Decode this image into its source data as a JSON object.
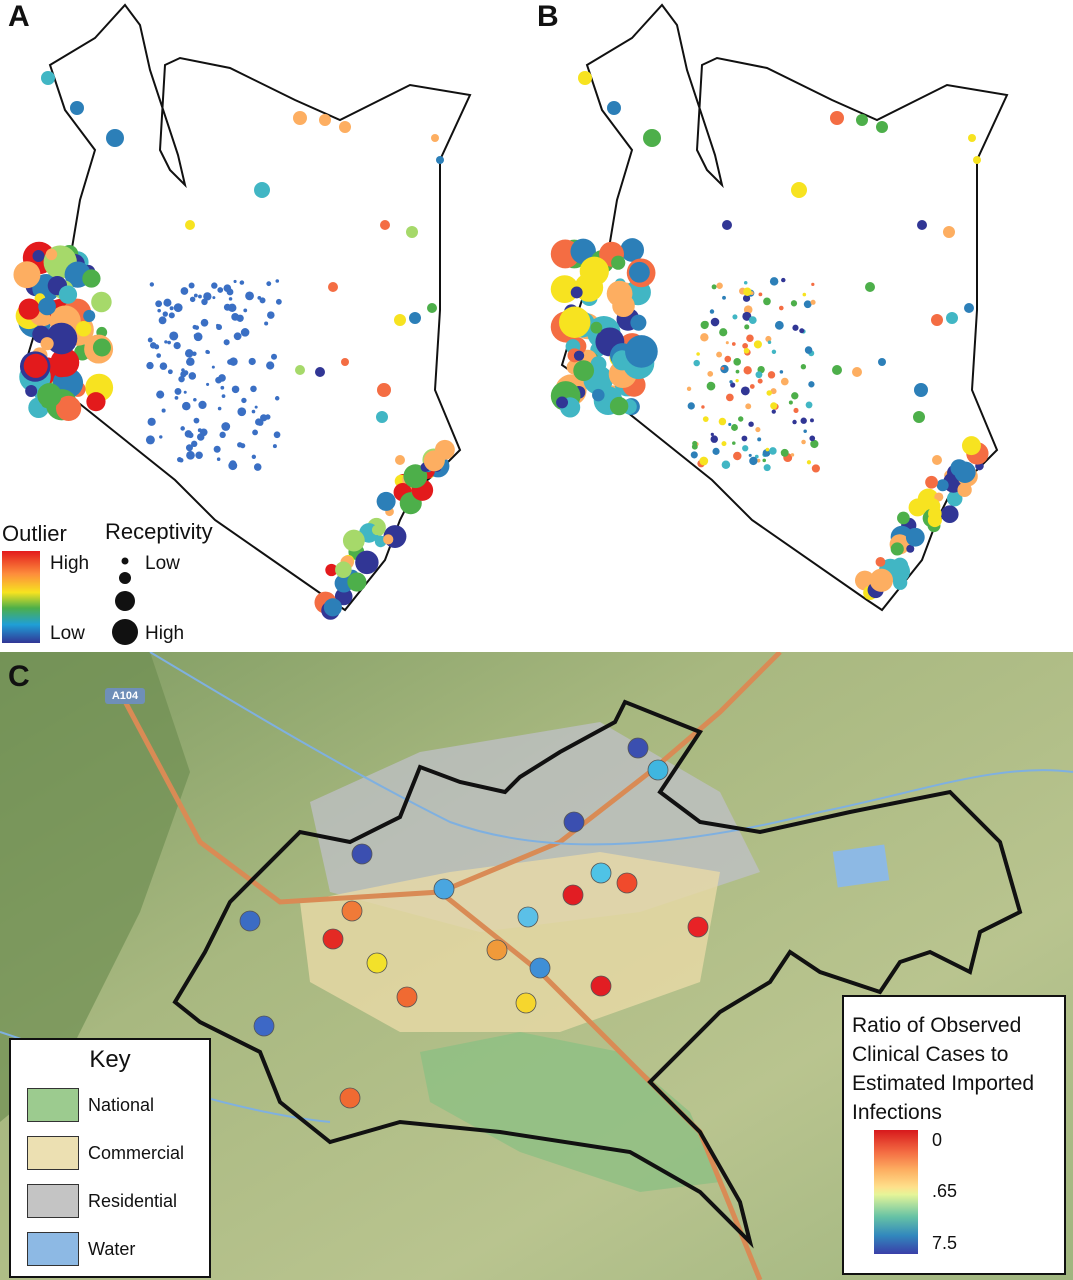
{
  "panels": {
    "a_label": "A",
    "b_label": "B",
    "c_label": "C"
  },
  "legend_top": {
    "outlier_title": "Outlier",
    "outlier_high": "High",
    "outlier_low": "Low",
    "receptivity_title": "Receptivity",
    "receptivity_low": "Low",
    "receptivity_high": "High"
  },
  "road_label": "A104",
  "key": {
    "title": "Key",
    "items": [
      {
        "label": "National",
        "color": "#9ccb8f"
      },
      {
        "label": "Commercial",
        "color": "#ece0b2"
      },
      {
        "label": "Residential",
        "color": "#c4c4c4"
      },
      {
        "label": "Water",
        "color": "#8db9e4"
      }
    ]
  },
  "ratio_legend": {
    "title": "Ratio of Observed Clinical Cases to Estimated Imported Infections",
    "ticks": [
      "0",
      ".65",
      "7.5"
    ]
  },
  "colors": {
    "high": "#e31a1c",
    "mid": "#f7e320",
    "low": "#313695",
    "map_outline": "#111111"
  }
}
